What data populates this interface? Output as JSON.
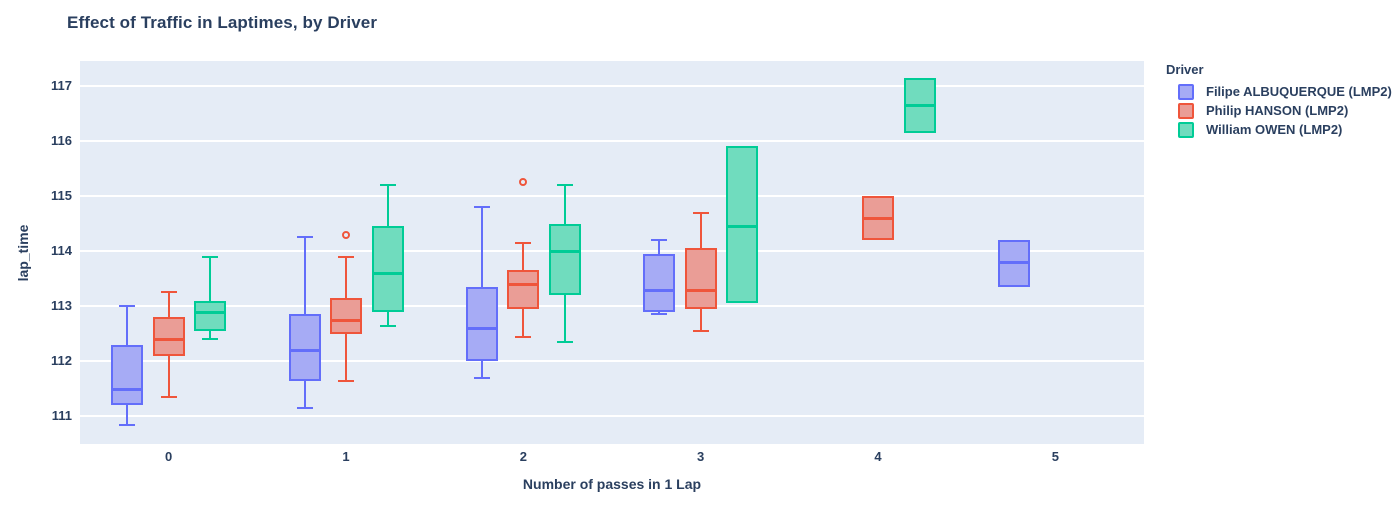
{
  "title": "Effect of Traffic in Laptimes, by Driver",
  "legend": {
    "title": "Driver"
  },
  "colors": {
    "text": "#2a3f5f",
    "plot_bg": "#e5ecf6",
    "grid": "#ffffff"
  },
  "chart_data": {
    "type": "box",
    "title": "Effect of Traffic in Laptimes, by Driver",
    "xlabel": "Number of passes in 1 Lap",
    "ylabel": "lap_time",
    "categories": [
      "0",
      "1",
      "2",
      "3",
      "4",
      "5"
    ],
    "yticks": [
      111,
      112,
      113,
      114,
      115,
      116,
      117
    ],
    "ylim": [
      110.5,
      117.45
    ],
    "grid": true,
    "legend_position": "right",
    "legend_title": "Driver",
    "series": [
      {
        "name": "Filipe ALBUQUERQUE (LMP2)",
        "line": "#636efa",
        "fill": "#a6abf5",
        "boxes": [
          {
            "x": 0,
            "low": 110.85,
            "q1": 111.2,
            "med": 111.5,
            "q3": 112.3,
            "high": 113.0,
            "outliers": []
          },
          {
            "x": 1,
            "low": 111.15,
            "q1": 111.65,
            "med": 112.2,
            "q3": 112.85,
            "high": 114.25,
            "outliers": []
          },
          {
            "x": 2,
            "low": 111.7,
            "q1": 112.0,
            "med": 112.6,
            "q3": 113.35,
            "high": 114.8,
            "outliers": []
          },
          {
            "x": 3,
            "low": 112.85,
            "q1": 112.9,
            "med": 113.3,
            "q3": 113.95,
            "high": 114.2,
            "outliers": []
          },
          {
            "x": 5,
            "low": 113.35,
            "q1": 113.35,
            "med": 113.8,
            "q3": 114.2,
            "high": 114.2,
            "outliers": []
          }
        ]
      },
      {
        "name": "Philip HANSON (LMP2)",
        "line": "#ef553b",
        "fill": "#ea9d96",
        "boxes": [
          {
            "x": 0,
            "low": 111.35,
            "q1": 112.1,
            "med": 112.4,
            "q3": 112.8,
            "high": 113.25,
            "outliers": []
          },
          {
            "x": 1,
            "low": 111.65,
            "q1": 112.5,
            "med": 112.75,
            "q3": 113.15,
            "high": 113.9,
            "outliers": [
              114.3
            ]
          },
          {
            "x": 2,
            "low": 112.45,
            "q1": 112.95,
            "med": 113.4,
            "q3": 113.65,
            "high": 114.15,
            "outliers": [
              115.25
            ]
          },
          {
            "x": 3,
            "low": 112.55,
            "q1": 112.95,
            "med": 113.3,
            "q3": 114.05,
            "high": 114.7,
            "outliers": []
          },
          {
            "x": 4,
            "low": 114.2,
            "q1": 114.2,
            "med": 114.6,
            "q3": 115.0,
            "high": 115.0,
            "outliers": []
          }
        ]
      },
      {
        "name": "William OWEN (LMP2)",
        "line": "#00cc96",
        "fill": "#70dcbe",
        "boxes": [
          {
            "x": 0,
            "low": 112.4,
            "q1": 112.55,
            "med": 112.9,
            "q3": 113.1,
            "high": 113.9,
            "outliers": []
          },
          {
            "x": 1,
            "low": 112.65,
            "q1": 112.9,
            "med": 113.6,
            "q3": 114.45,
            "high": 115.2,
            "outliers": []
          },
          {
            "x": 2,
            "low": 112.35,
            "q1": 113.2,
            "med": 114.0,
            "q3": 114.5,
            "high": 115.2,
            "outliers": []
          },
          {
            "x": 3,
            "low": 113.05,
            "q1": 113.05,
            "med": 114.45,
            "q3": 115.9,
            "high": 115.9,
            "outliers": []
          },
          {
            "x": 4,
            "low": 116.15,
            "q1": 116.15,
            "med": 116.65,
            "q3": 117.15,
            "high": 117.15,
            "outliers": []
          }
        ]
      }
    ]
  }
}
